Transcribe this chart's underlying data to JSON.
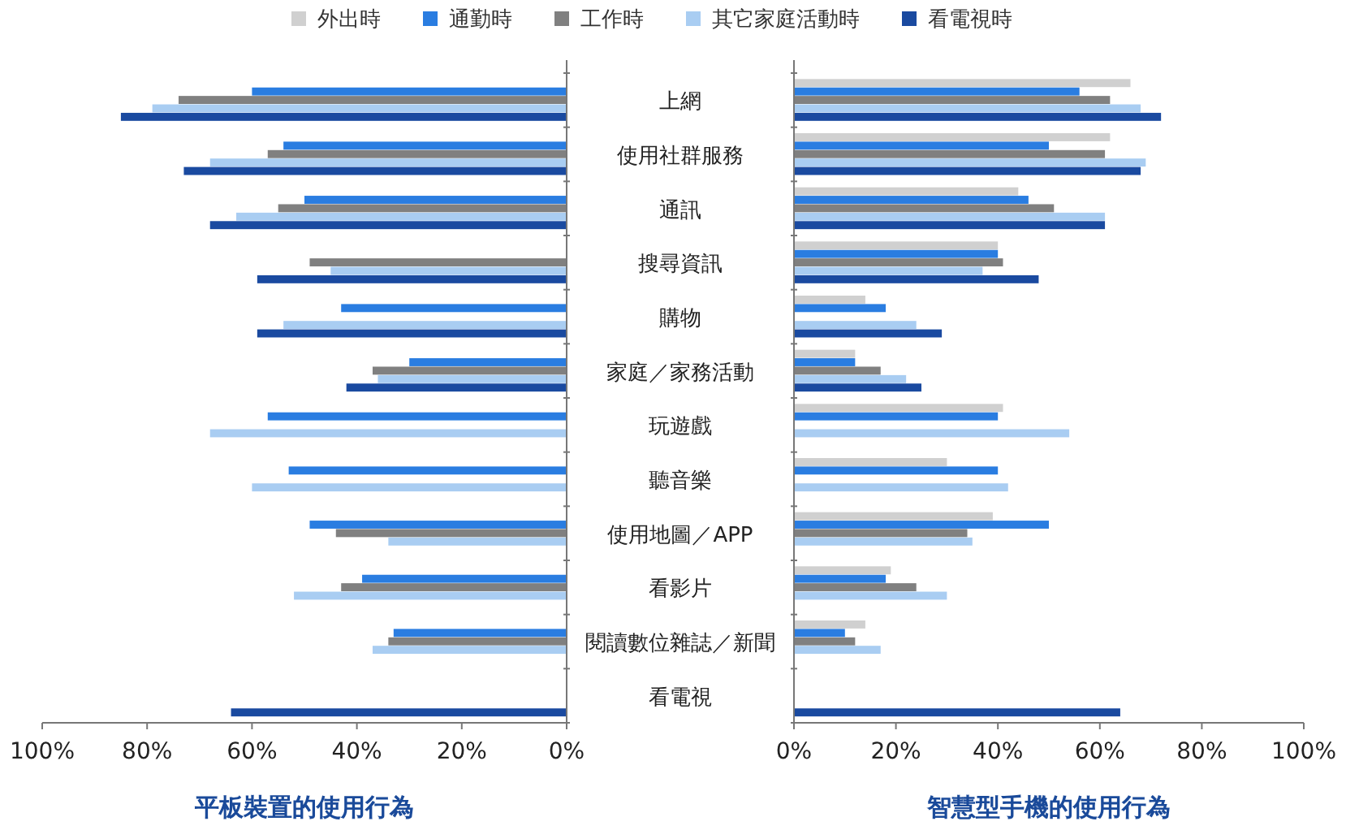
{
  "chart_data": [
    {
      "type": "bar",
      "orientation": "horizontal",
      "xlabel": "平板裝置的使用行為",
      "legend": "top",
      "tick_labels": "x",
      "grid": false,
      "categories": [
        "上網",
        "使用社群服務",
        "通訊",
        "搜尋資訊",
        "購物",
        "家庭／家務活動",
        "玩遊戲",
        "聽音樂",
        "使用地圖／APP",
        "看影片",
        "閱讀數位雜誌／新聞",
        "看電視"
      ],
      "xlim": [
        100,
        0
      ],
      "xticks": [
        {
          "value": 100,
          "label": "100%"
        },
        {
          "value": 80,
          "label": "80%"
        },
        {
          "value": 60,
          "label": "60%"
        },
        {
          "value": 40,
          "label": "40%"
        },
        {
          "value": 20,
          "label": "20%"
        },
        {
          "value": 0,
          "label": "0%"
        }
      ],
      "series": [
        {
          "name": "外出時",
          "color": "#d0d0d0",
          "values": [
            null,
            null,
            null,
            null,
            null,
            null,
            null,
            null,
            null,
            null,
            null,
            null
          ]
        },
        {
          "name": "通勤時",
          "color": "#2a7de1",
          "values": [
            60,
            54,
            50,
            null,
            43,
            30,
            57,
            53,
            49,
            39,
            33,
            null
          ]
        },
        {
          "name": "工作時",
          "color": "#808080",
          "values": [
            74,
            57,
            55,
            49,
            null,
            37,
            null,
            null,
            44,
            43,
            34,
            null
          ]
        },
        {
          "name": "其它家庭活動時",
          "color": "#a9cdf2",
          "values": [
            79,
            68,
            63,
            45,
            54,
            36,
            68,
            60,
            34,
            52,
            37,
            null
          ]
        },
        {
          "name": "看電視時",
          "color": "#1a4aa0",
          "values": [
            85,
            73,
            68,
            59,
            59,
            42,
            null,
            null,
            null,
            null,
            null,
            64
          ]
        }
      ]
    },
    {
      "type": "bar",
      "orientation": "horizontal",
      "xlabel": "智慧型手機的使用行為",
      "grid": false,
      "categories": [
        "上網",
        "使用社群服務",
        "通訊",
        "搜尋資訊",
        "購物",
        "家庭／家務活動",
        "玩遊戲",
        "聽音樂",
        "使用地圖／APP",
        "看影片",
        "閱讀數位雜誌／新聞",
        "看電視"
      ],
      "xlim": [
        0,
        100
      ],
      "xticks": [
        {
          "value": 0,
          "label": "0%"
        },
        {
          "value": 20,
          "label": "20%"
        },
        {
          "value": 40,
          "label": "40%"
        },
        {
          "value": 60,
          "label": "60%"
        },
        {
          "value": 80,
          "label": "80%"
        },
        {
          "value": 100,
          "label": "100%"
        }
      ],
      "series": [
        {
          "color": "#d0d0d0",
          "values": [
            66,
            62,
            44,
            40,
            14,
            12,
            41,
            30,
            39,
            19,
            14,
            null
          ]
        },
        {
          "color": "#2a7de1",
          "values": [
            56,
            50,
            46,
            40,
            18,
            12,
            40,
            40,
            50,
            18,
            10,
            null
          ]
        },
        {
          "color": "#808080",
          "values": [
            62,
            61,
            51,
            41,
            null,
            17,
            null,
            null,
            34,
            24,
            12,
            null
          ]
        },
        {
          "color": "#a9cdf2",
          "values": [
            68,
            69,
            61,
            37,
            24,
            22,
            54,
            42,
            35,
            30,
            17,
            null
          ]
        },
        {
          "color": "#1a4aa0",
          "values": [
            72,
            68,
            61,
            48,
            29,
            25,
            null,
            null,
            null,
            null,
            null,
            64
          ]
        }
      ]
    }
  ]
}
